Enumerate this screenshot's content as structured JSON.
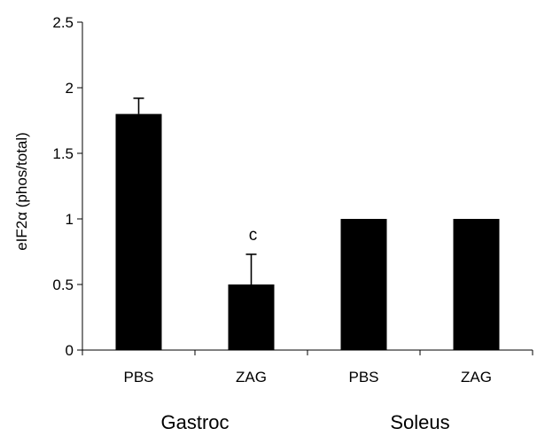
{
  "chart_data": {
    "type": "bar",
    "title": "",
    "xlabel": "",
    "ylabel": "eIF2α (phos/total)",
    "ylim": [
      0,
      2.5
    ],
    "yticks": [
      0,
      0.5,
      1,
      1.5,
      2,
      2.5
    ],
    "ytick_labels": [
      "0",
      "0.5",
      "1",
      "1.5",
      "2",
      "2.5"
    ],
    "categories": [
      "PBS",
      "ZAG",
      "PBS",
      "ZAG"
    ],
    "groups": [
      {
        "label": "Gastroc",
        "categories": [
          0,
          1
        ]
      },
      {
        "label": "Soleus",
        "categories": [
          2,
          3
        ]
      }
    ],
    "values": [
      1.8,
      0.5,
      1.0,
      1.0
    ],
    "error_plus": [
      0.12,
      0.23,
      0,
      0
    ],
    "annotations": [
      {
        "category_index": 1,
        "text": "c"
      }
    ],
    "bar_color": "#000000",
    "grid": false,
    "legend": "none"
  }
}
